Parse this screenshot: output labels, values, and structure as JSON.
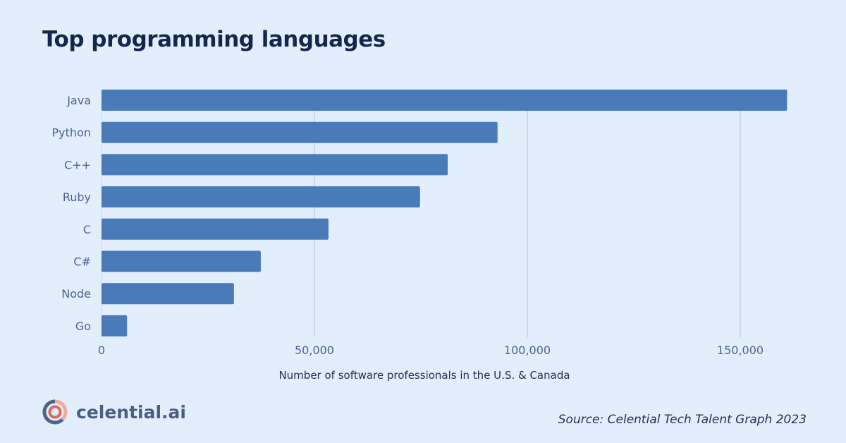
{
  "chart_data": {
    "type": "bar",
    "orientation": "horizontal",
    "title": "Top programming languages",
    "xlabel": "Number of software professionals in the U.S. & Canada",
    "ylabel": "",
    "categories": [
      "Java",
      "Python",
      "C++",
      "Ruby",
      "C",
      "C#",
      "Node",
      "Go"
    ],
    "values": [
      161000,
      93000,
      81300,
      74800,
      53300,
      37400,
      31100,
      6000
    ],
    "xlim": [
      0,
      160000
    ],
    "xticks": [
      0,
      50000,
      100000,
      150000
    ],
    "xtick_labels": [
      "0",
      "50,000",
      "100,000",
      "150,000"
    ],
    "grid": "vertical",
    "bar_color": "#4a7ab8"
  },
  "source": "Source: Celential Tech Talent Graph 2023",
  "brand": {
    "name": "celential.ai"
  }
}
